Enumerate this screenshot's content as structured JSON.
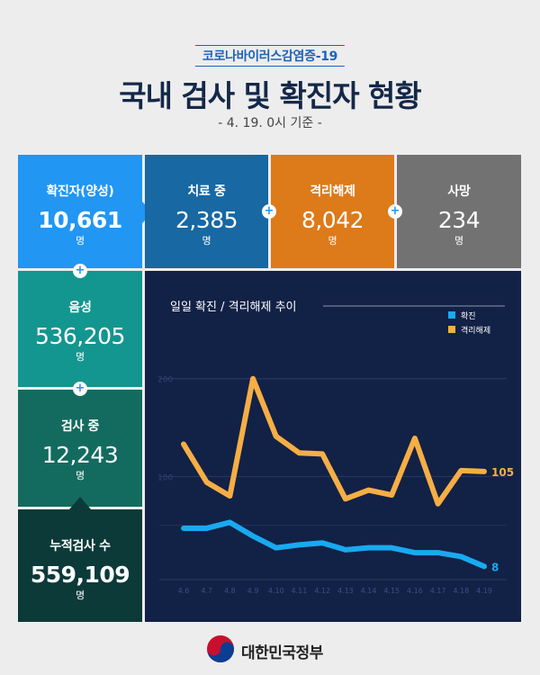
{
  "header": {
    "subject": "코로나바이러스감염증-19",
    "title": "국내 검사 및 확진자 현황",
    "date_basis": "- 4. 19. 0시 기준 -"
  },
  "stats": {
    "confirmed": {
      "label": "확진자(양성)",
      "value": "10,661",
      "unit": "명"
    },
    "in_treatment": {
      "label": "치료 중",
      "value": "2,385",
      "unit": "명"
    },
    "released": {
      "label": "격리해제",
      "value": "8,042",
      "unit": "명"
    },
    "deaths": {
      "label": "사망",
      "value": "234",
      "unit": "명"
    },
    "negative": {
      "label": "음성",
      "value": "536,205",
      "unit": "명"
    },
    "testing": {
      "label": "검사 중",
      "value": "12,243",
      "unit": "명"
    },
    "total_tests": {
      "label": "누적검사 수",
      "value": "559,109",
      "unit": "명"
    }
  },
  "colors": {
    "confirmed": "#2196f3",
    "in_treatment": "#1768a3",
    "released": "#dd7a1a",
    "deaths": "#727272",
    "negative": "#13968f",
    "testing": "#136b5f",
    "total_tests": "#0b3a39",
    "chart_bg": "#122146",
    "series_confirmed": "#18aaf0",
    "series_released": "#f6ae45"
  },
  "chart_data": {
    "type": "line",
    "title": "일일 확진 / 격리해제 추이",
    "x": [
      "4.6",
      "4.7",
      "4.8",
      "4.9",
      "4.10",
      "4.11",
      "4.12",
      "4.13",
      "4.14",
      "4.15",
      "4.16",
      "4.17",
      "4.18",
      "4.19"
    ],
    "series": [
      {
        "name": "확진",
        "values": [
          47,
          47,
          53,
          39,
          27,
          30,
          32,
          25,
          27,
          27,
          22,
          22,
          18,
          8
        ],
        "end_label": "8",
        "color": "#18aaf0"
      },
      {
        "name": "격리해제",
        "values": [
          133,
          94,
          80,
          200,
          141,
          124,
          123,
          77,
          86,
          81,
          139,
          72,
          106,
          105
        ],
        "end_label": "105",
        "color": "#f6ae45"
      }
    ],
    "yticks": [
      100,
      200
    ],
    "ylim": [
      0,
      220
    ],
    "grid": true,
    "legend_position": "top-right"
  },
  "footer": {
    "organization": "대한민국정부",
    "logo_icon": "taegeuk-emblem-icon"
  }
}
